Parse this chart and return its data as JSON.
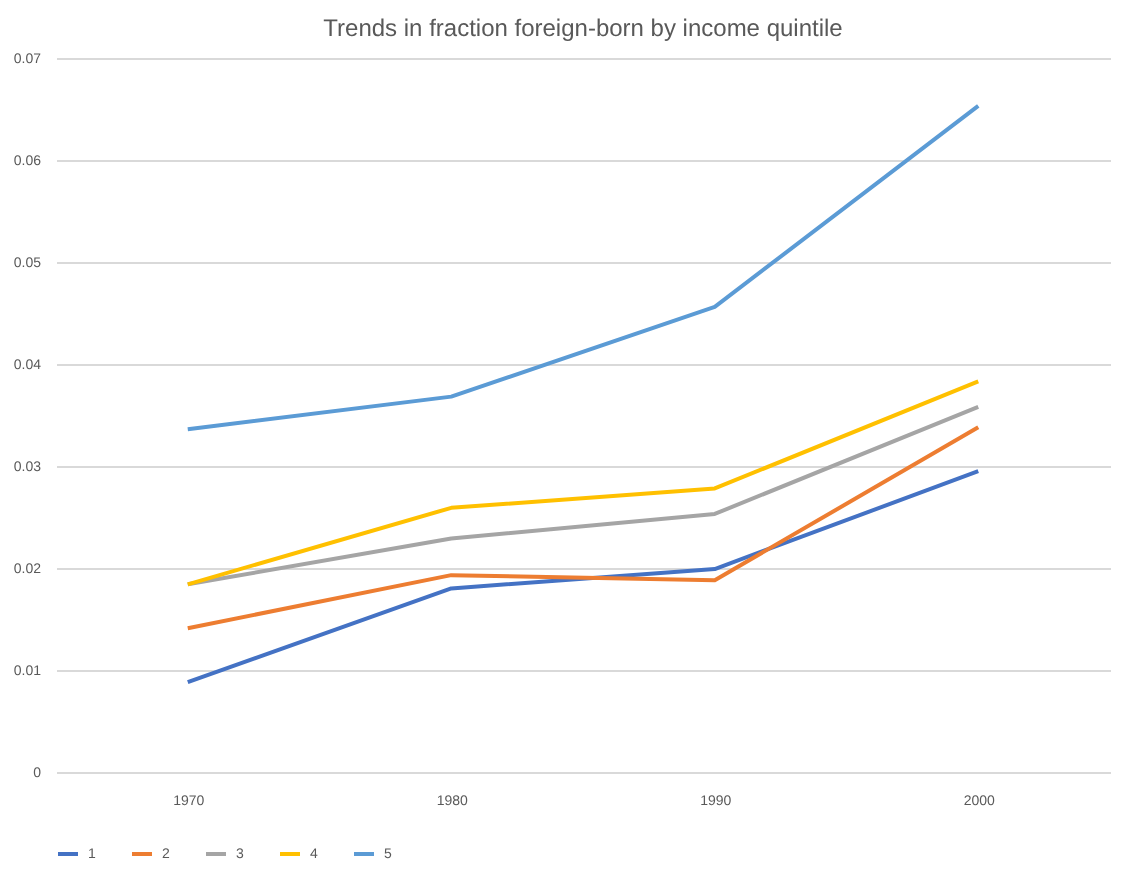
{
  "chart_data": {
    "type": "line",
    "title": "Trends in fraction foreign-born by income quintile",
    "categories": [
      "1970",
      "1980",
      "1990",
      "2000"
    ],
    "series": [
      {
        "name": "1",
        "color": "#4472c4",
        "values": [
          0.0088,
          0.018,
          0.0199,
          0.0295
        ]
      },
      {
        "name": "2",
        "color": "#ed7d31",
        "values": [
          0.0141,
          0.0193,
          0.0188,
          0.0338
        ]
      },
      {
        "name": "3",
        "color": "#a5a5a5",
        "values": [
          0.0184,
          0.0229,
          0.0253,
          0.0358
        ]
      },
      {
        "name": "4",
        "color": "#ffc000",
        "values": [
          0.0184,
          0.0259,
          0.0278,
          0.0383
        ]
      },
      {
        "name": "5",
        "color": "#5b9bd5",
        "values": [
          0.0336,
          0.0368,
          0.0456,
          0.0653
        ]
      }
    ],
    "ylim": [
      0,
      0.07
    ],
    "yticks": [
      0,
      0.01,
      0.02,
      0.03,
      0.04,
      0.05,
      0.06,
      0.07
    ],
    "grid": "y",
    "legend": "bottom",
    "marker": "none",
    "line_style": "solid"
  }
}
